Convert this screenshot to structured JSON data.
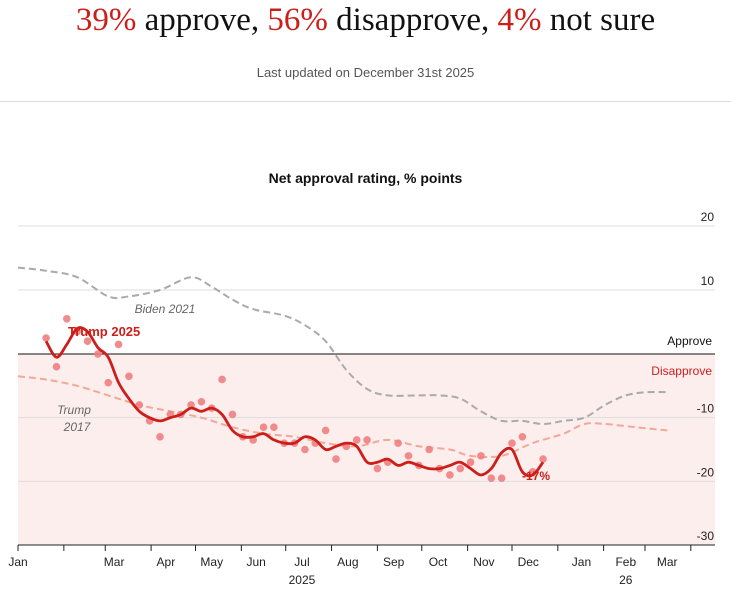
{
  "headline": {
    "approve_value": "39%",
    "approve_text": " approve, ",
    "disapprove_value": "56%",
    "disapprove_text": " disapprove, ",
    "notsure_value": "4%",
    "notsure_text": " not sure"
  },
  "updated": "Last updated on December 31st 2025",
  "colors": {
    "accent_red": "#cc1f1a",
    "dot_red": "#f08080",
    "trump2017": "#f2a898",
    "biden2021": "#aaaaaa",
    "disapprove_fill": "#fdeeee"
  },
  "chart_data": {
    "type": "line",
    "title": "Net approval rating, % points",
    "ylim": [
      -30,
      20
    ],
    "yticks": [
      20,
      10,
      -10,
      -20,
      -30
    ],
    "grid": true,
    "x_ticks": [
      "Jan",
      "Mar",
      "Apr",
      "May",
      "Jun",
      "Jul",
      "Aug",
      "Sep",
      "Oct",
      "Nov",
      "Dec",
      "Jan",
      "Feb",
      "Mar"
    ],
    "year_labels": [
      "2025",
      "26"
    ],
    "reference_labels": {
      "above": "Approve",
      "below": "Disapprove"
    },
    "last_value_label": "-17%",
    "series": [
      {
        "name": "Trump 2025",
        "style": "solid",
        "x": [
          "2025-01-20",
          "2025-01-27",
          "2025-02-03",
          "2025-02-10",
          "2025-02-17",
          "2025-02-24",
          "2025-03-03",
          "2025-03-10",
          "2025-03-17",
          "2025-03-24",
          "2025-03-31",
          "2025-04-07",
          "2025-04-14",
          "2025-04-21",
          "2025-04-28",
          "2025-05-05",
          "2025-05-12",
          "2025-05-19",
          "2025-05-26",
          "2025-06-02",
          "2025-06-09",
          "2025-06-16",
          "2025-06-23",
          "2025-06-30",
          "2025-07-07",
          "2025-07-14",
          "2025-07-21",
          "2025-07-28",
          "2025-08-04",
          "2025-08-11",
          "2025-08-18",
          "2025-08-25",
          "2025-09-01",
          "2025-09-08",
          "2025-09-15",
          "2025-09-22",
          "2025-09-29",
          "2025-10-06",
          "2025-10-13",
          "2025-10-20",
          "2025-10-27",
          "2025-11-03",
          "2025-11-10",
          "2025-11-17",
          "2025-11-24",
          "2025-12-01",
          "2025-12-08",
          "2025-12-15",
          "2025-12-22"
        ],
        "values": [
          2.0,
          -0.5,
          1.5,
          4.0,
          3.5,
          1.0,
          -0.5,
          -4.5,
          -7.0,
          -9.0,
          -10.0,
          -10.5,
          -10.0,
          -9.5,
          -8.5,
          -9.0,
          -8.5,
          -9.5,
          -12.0,
          -13.0,
          -13.0,
          -12.5,
          -13.5,
          -14.0,
          -14.0,
          -13.0,
          -13.5,
          -15.0,
          -14.5,
          -14.0,
          -14.5,
          -17.0,
          -17.0,
          -16.5,
          -17.5,
          -17.0,
          -17.5,
          -18.0,
          -18.0,
          -17.5,
          -17.0,
          -18.0,
          -19.0,
          -18.0,
          -15.5,
          -15.0,
          -18.5,
          -19.0,
          -17.0
        ]
      },
      {
        "name": "Trump 2025 polls",
        "style": "dots",
        "x": [
          "2025-01-20",
          "2025-01-27",
          "2025-02-03",
          "2025-02-10",
          "2025-02-17",
          "2025-02-24",
          "2025-03-03",
          "2025-03-10",
          "2025-03-17",
          "2025-03-24",
          "2025-03-31",
          "2025-04-07",
          "2025-04-14",
          "2025-04-21",
          "2025-04-28",
          "2025-05-05",
          "2025-05-12",
          "2025-05-19",
          "2025-05-26",
          "2025-06-02",
          "2025-06-09",
          "2025-06-16",
          "2025-06-23",
          "2025-06-30",
          "2025-07-07",
          "2025-07-14",
          "2025-07-21",
          "2025-07-28",
          "2025-08-04",
          "2025-08-11",
          "2025-08-18",
          "2025-08-25",
          "2025-09-01",
          "2025-09-08",
          "2025-09-15",
          "2025-09-22",
          "2025-09-29",
          "2025-10-06",
          "2025-10-13",
          "2025-10-20",
          "2025-10-27",
          "2025-11-03",
          "2025-11-10",
          "2025-11-17",
          "2025-11-24",
          "2025-12-01",
          "2025-12-08",
          "2025-12-15",
          "2025-12-22"
        ],
        "values": [
          2.5,
          -2.0,
          5.5,
          3.5,
          2.0,
          0.0,
          -4.5,
          1.5,
          -3.5,
          -8.0,
          -10.5,
          -13.0,
          -9.5,
          -9.5,
          -8.0,
          -7.5,
          -8.5,
          -4.0,
          -9.5,
          -13.0,
          -13.5,
          -11.5,
          -11.5,
          -14.0,
          -14.0,
          -15.0,
          -14.0,
          -12.0,
          -16.5,
          -14.5,
          -13.5,
          -13.5,
          -18.0,
          -17.0,
          -14.0,
          -16.0,
          -17.5,
          -15.0,
          -18.0,
          -19.0,
          -18.0,
          -17.0,
          -16.0,
          -19.5,
          -19.5,
          -14.0,
          -13.0,
          -18.5,
          -16.5
        ]
      },
      {
        "name": "Biden 2021",
        "style": "dashed",
        "x": [
          "2025-01-01",
          "2025-01-20",
          "2025-02-10",
          "2025-03-03",
          "2025-03-17",
          "2025-04-07",
          "2025-04-28",
          "2025-05-12",
          "2025-05-26",
          "2025-06-09",
          "2025-06-30",
          "2025-07-14",
          "2025-07-28",
          "2025-08-11",
          "2025-08-25",
          "2025-09-08",
          "2025-09-29",
          "2025-10-13",
          "2025-10-27",
          "2025-11-10",
          "2025-11-24",
          "2025-12-08",
          "2025-12-22",
          "2026-01-05",
          "2026-01-19",
          "2026-02-02",
          "2026-02-16",
          "2026-03-02",
          "2026-03-16"
        ],
        "values": [
          13.5,
          13.0,
          12.0,
          9.0,
          9.0,
          10.0,
          12.0,
          10.5,
          8.5,
          7.0,
          6.0,
          4.5,
          2.0,
          -2.5,
          -5.5,
          -6.5,
          -6.5,
          -6.5,
          -7.0,
          -9.0,
          -10.5,
          -10.5,
          -11.0,
          -10.5,
          -10.0,
          -8.0,
          -6.5,
          -6.0,
          -6.0
        ]
      },
      {
        "name": "Trump 2017",
        "style": "dashed",
        "x": [
          "2025-01-01",
          "2025-01-20",
          "2025-02-10",
          "2025-03-03",
          "2025-03-24",
          "2025-04-14",
          "2025-05-05",
          "2025-05-26",
          "2025-06-16",
          "2025-07-07",
          "2025-07-28",
          "2025-08-18",
          "2025-09-08",
          "2025-09-29",
          "2025-10-20",
          "2025-11-03",
          "2025-11-24",
          "2025-12-15",
          "2026-01-05",
          "2026-01-19",
          "2026-02-02",
          "2026-02-23",
          "2026-03-16"
        ],
        "values": [
          -3.5,
          -4.0,
          -5.0,
          -6.5,
          -8.0,
          -9.0,
          -10.0,
          -11.5,
          -12.5,
          -13.0,
          -14.0,
          -14.5,
          -13.5,
          -14.5,
          -15.0,
          -16.0,
          -16.0,
          -14.0,
          -12.5,
          -11.0,
          -11.0,
          -11.5,
          -12.0
        ]
      }
    ]
  }
}
